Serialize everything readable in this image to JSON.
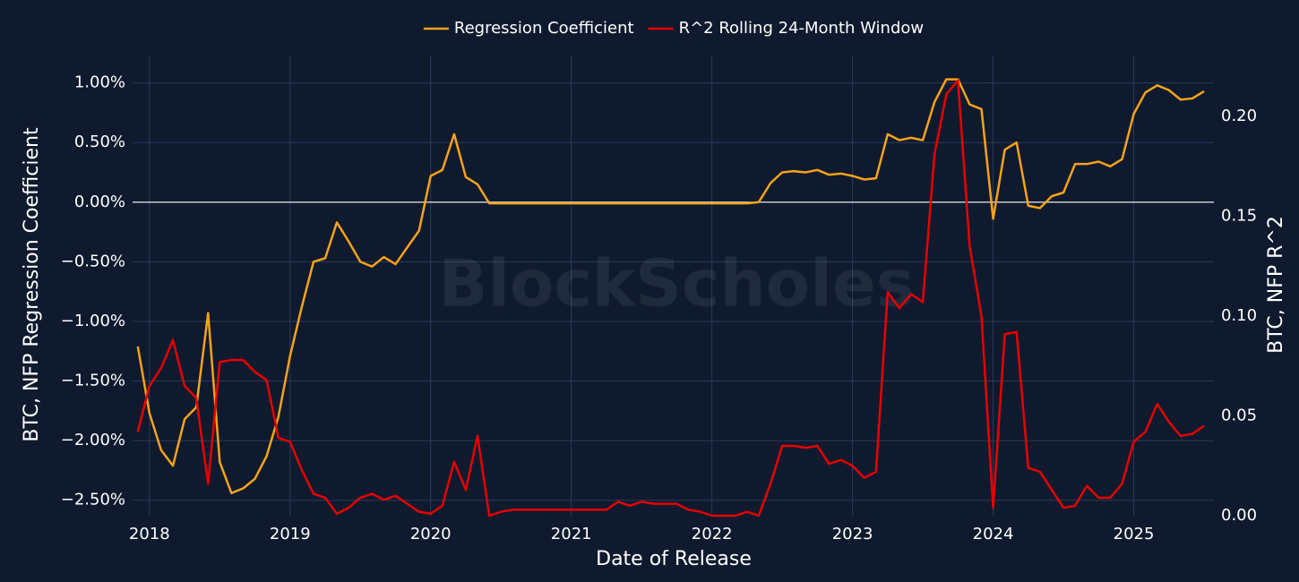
{
  "chart_data": {
    "type": "line",
    "watermark": "BlockScholes",
    "xlabel": "Date of Release",
    "ylabel": "BTC, NFP Regression Coefficient",
    "y2label": "BTC, NFP R^2",
    "legend": "top",
    "grid": true,
    "zeroline": true,
    "xlim": [
      2017.88,
      2025.57
    ],
    "xticks": [
      2018,
      2019,
      2020,
      2021,
      2022,
      2023,
      2024,
      2025
    ],
    "ylim": [
      -2.63,
      1.23
    ],
    "yticks": [
      {
        "value": 1,
        "label": "1.00%"
      },
      {
        "value": 0.5,
        "label": "0.50%"
      },
      {
        "value": 0,
        "label": "0.00%"
      },
      {
        "value": -0.5,
        "label": "−0.50%"
      },
      {
        "value": -1,
        "label": "−1.00%"
      },
      {
        "value": -1.5,
        "label": "−1.50%"
      },
      {
        "value": -2,
        "label": "−2.00%"
      },
      {
        "value": -2.5,
        "label": "−2.50%"
      }
    ],
    "y2lim": [
      0,
      0.2305
    ],
    "y2ticks": [
      {
        "value": 0,
        "label": "0.00"
      },
      {
        "value": 0.05,
        "label": "0.05"
      },
      {
        "value": 0.1,
        "label": "0.10"
      },
      {
        "value": 0.15,
        "label": "0.15"
      },
      {
        "value": 0.2,
        "label": "0.20"
      }
    ],
    "x": [
      2017.917,
      2018.0,
      2018.083,
      2018.167,
      2018.25,
      2018.333,
      2018.417,
      2018.5,
      2018.583,
      2018.667,
      2018.75,
      2018.833,
      2018.917,
      2019.0,
      2019.083,
      2019.167,
      2019.25,
      2019.333,
      2019.417,
      2019.5,
      2019.583,
      2019.667,
      2019.75,
      2019.833,
      2019.917,
      2020.0,
      2020.083,
      2020.167,
      2020.25,
      2020.333,
      2020.417,
      2020.5,
      2020.583,
      2020.667,
      2020.75,
      2020.833,
      2020.917,
      2021.0,
      2021.083,
      2021.167,
      2021.25,
      2021.333,
      2021.417,
      2021.5,
      2021.583,
      2021.667,
      2021.75,
      2021.833,
      2021.917,
      2022.0,
      2022.083,
      2022.167,
      2022.25,
      2022.333,
      2022.417,
      2022.5,
      2022.583,
      2022.667,
      2022.75,
      2022.833,
      2022.917,
      2023.0,
      2023.083,
      2023.167,
      2023.25,
      2023.333,
      2023.417,
      2023.5,
      2023.583,
      2023.667,
      2023.75,
      2023.833,
      2023.917,
      2024.0,
      2024.083,
      2024.167,
      2024.25,
      2024.333,
      2024.417,
      2024.5,
      2024.583,
      2024.667,
      2024.75,
      2024.833,
      2024.917,
      2025.0,
      2025.083,
      2025.167,
      2025.25,
      2025.333,
      2025.417,
      2025.5
    ],
    "series": [
      {
        "name": "Regression Coefficient",
        "color": "#f5a31a",
        "axis": "y",
        "values": [
          -1.21,
          -1.77,
          -2.08,
          -2.21,
          -1.82,
          -1.72,
          -0.93,
          -2.18,
          -2.44,
          -2.4,
          -2.32,
          -2.13,
          -1.8,
          -1.29,
          -0.88,
          -0.5,
          -0.47,
          -0.17,
          -0.33,
          -0.5,
          -0.54,
          -0.46,
          -0.52,
          -0.38,
          -0.24,
          0.22,
          0.27,
          0.57,
          0.21,
          0.15,
          -0.01,
          -0.01,
          -0.01,
          -0.01,
          -0.01,
          -0.01,
          -0.01,
          -0.01,
          -0.01,
          -0.01,
          -0.01,
          -0.01,
          -0.01,
          -0.01,
          -0.01,
          -0.01,
          -0.01,
          -0.01,
          -0.01,
          -0.01,
          -0.01,
          -0.01,
          -0.01,
          0.0,
          0.16,
          0.25,
          0.26,
          0.25,
          0.27,
          0.23,
          0.24,
          0.22,
          0.19,
          0.2,
          0.57,
          0.52,
          0.54,
          0.52,
          0.84,
          1.03,
          1.03,
          0.82,
          0.78,
          -0.14,
          0.44,
          0.5,
          -0.03,
          -0.05,
          0.05,
          0.08,
          0.32,
          0.32,
          0.34,
          0.3,
          0.36,
          0.74,
          0.92,
          0.98,
          0.94,
          0.86,
          0.87,
          0.93
        ]
      },
      {
        "name": "R^2 Rolling 24-Month Window",
        "color": "#e80000",
        "axis": "y2",
        "values": [
          0.042,
          0.065,
          0.074,
          0.088,
          0.065,
          0.059,
          0.016,
          0.077,
          0.078,
          0.078,
          0.072,
          0.068,
          0.039,
          0.037,
          0.023,
          0.011,
          0.009,
          0.001,
          0.004,
          0.009,
          0.011,
          0.008,
          0.01,
          0.006,
          0.002,
          0.001,
          0.005,
          0.027,
          0.013,
          0.04,
          0.0,
          0.002,
          0.003,
          0.003,
          0.003,
          0.003,
          0.003,
          0.003,
          0.003,
          0.003,
          0.003,
          0.007,
          0.005,
          0.007,
          0.006,
          0.006,
          0.006,
          0.003,
          0.002,
          0.0,
          0.0,
          0.0,
          0.002,
          0.0,
          0.016,
          0.035,
          0.035,
          0.034,
          0.035,
          0.026,
          0.028,
          0.025,
          0.019,
          0.022,
          0.112,
          0.104,
          0.111,
          0.107,
          0.181,
          0.211,
          0.218,
          0.135,
          0.1,
          0.004,
          0.091,
          0.092,
          0.024,
          0.022,
          0.013,
          0.004,
          0.005,
          0.015,
          0.009,
          0.009,
          0.016,
          0.037,
          0.042,
          0.056,
          0.047,
          0.04,
          0.041,
          0.045
        ]
      }
    ]
  }
}
